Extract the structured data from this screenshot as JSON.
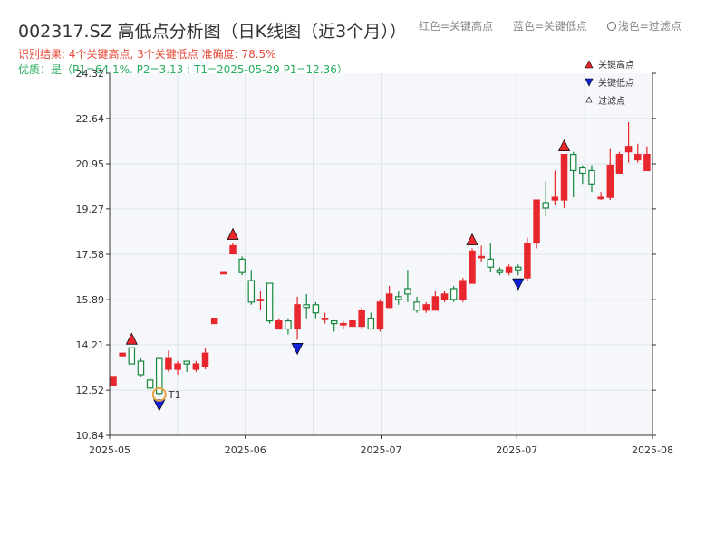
{
  "header": {
    "title": "002317.SZ 高低点分析图（日K线图（近3个月））",
    "legend_red": "红色=关键高点",
    "legend_blue": "蓝色=关键低点",
    "legend_filtered": "浅色=过滤点",
    "result_line": "识别结果: 4个关键高点, 3个关键低点  准确度: 78.5%",
    "quality_line": "优质：是（P1=64.1%, P2=3.13 ; T1=2025-05-29 P1=12.36）"
  },
  "colors": {
    "up": "#e8262d",
    "down": "#16883e",
    "high_marker": "#e8262d",
    "low_marker": "#1020d8",
    "t1_ring": "#e8a33d",
    "plot_bg": "#f5f7fa",
    "grid": "#dfe3e8"
  },
  "chart_data": {
    "type": "candlestick",
    "y_ticks": [
      "10.84",
      "12.52",
      "14.21",
      "15.89",
      "17.58",
      "19.27",
      "20.95",
      "22.64",
      "24.32"
    ],
    "ylim": [
      10.84,
      24.32
    ],
    "x_ticks": [
      "2025-05",
      "2025-06",
      "2025-07",
      "2025-07",
      "2025-08"
    ],
    "x_tick_positions": [
      0,
      20,
      40,
      60,
      80
    ],
    "grid": true,
    "candles": [
      [
        12.7,
        13.0,
        12.7,
        12.9
      ],
      [
        13.8,
        13.9,
        13.8,
        13.8
      ],
      [
        14.1,
        13.5,
        13.5,
        14.1
      ],
      [
        13.6,
        13.1,
        13.0,
        13.7
      ],
      [
        12.9,
        12.6,
        12.5,
        13.0
      ],
      [
        13.7,
        12.4,
        12.3,
        13.7
      ],
      [
        13.3,
        13.7,
        13.2,
        14.0
      ],
      [
        13.3,
        13.5,
        13.1,
        13.6
      ],
      [
        13.6,
        13.5,
        13.2,
        13.6
      ],
      [
        13.3,
        13.5,
        13.2,
        13.6
      ],
      [
        13.4,
        13.9,
        13.3,
        14.1
      ],
      [
        15.0,
        15.2,
        15.0,
        15.2
      ],
      [
        16.9,
        16.9,
        16.9,
        16.9
      ],
      [
        17.6,
        17.9,
        17.6,
        18.0
      ],
      [
        17.4,
        16.9,
        16.8,
        17.5
      ],
      [
        16.6,
        15.8,
        15.7,
        17.0
      ],
      [
        15.9,
        15.9,
        15.5,
        16.2
      ],
      [
        16.5,
        15.1,
        15.0,
        16.5
      ],
      [
        14.8,
        15.1,
        14.8,
        15.2
      ],
      [
        15.1,
        14.8,
        14.6,
        15.2
      ],
      [
        14.8,
        15.7,
        14.4,
        16.0
      ],
      [
        15.7,
        15.6,
        15.2,
        16.1
      ],
      [
        15.7,
        15.4,
        15.2,
        15.8
      ],
      [
        15.2,
        15.2,
        15.0,
        15.4
      ],
      [
        15.1,
        15.0,
        14.7,
        15.1
      ],
      [
        15.0,
        15.0,
        14.8,
        15.1
      ],
      [
        14.9,
        15.1,
        14.9,
        15.1
      ],
      [
        14.9,
        15.5,
        14.8,
        15.6
      ],
      [
        15.2,
        14.8,
        14.8,
        15.4
      ],
      [
        14.8,
        15.8,
        14.7,
        15.9
      ],
      [
        15.6,
        16.1,
        15.6,
        16.4
      ],
      [
        16.0,
        15.9,
        15.7,
        16.2
      ],
      [
        16.3,
        16.1,
        15.8,
        17.0
      ],
      [
        15.8,
        15.5,
        15.4,
        16.0
      ],
      [
        15.5,
        15.7,
        15.4,
        15.8
      ],
      [
        15.5,
        16.0,
        15.5,
        16.2
      ],
      [
        15.9,
        16.1,
        15.8,
        16.2
      ],
      [
        16.3,
        15.9,
        15.8,
        16.4
      ],
      [
        15.9,
        16.6,
        15.8,
        16.7
      ],
      [
        16.5,
        17.7,
        16.5,
        17.8
      ],
      [
        17.5,
        17.5,
        17.3,
        17.9
      ],
      [
        17.4,
        17.1,
        16.9,
        18.0
      ],
      [
        17.0,
        16.9,
        16.8,
        17.1
      ],
      [
        16.9,
        17.1,
        16.8,
        17.2
      ],
      [
        17.1,
        17.0,
        16.8,
        17.2
      ],
      [
        16.7,
        18.0,
        16.6,
        18.2
      ],
      [
        18.0,
        19.6,
        17.8,
        19.6
      ],
      [
        19.5,
        19.3,
        19.0,
        20.3
      ],
      [
        19.6,
        19.7,
        19.4,
        20.7
      ],
      [
        19.6,
        21.3,
        19.3,
        21.3
      ],
      [
        21.3,
        20.7,
        19.7,
        21.4
      ],
      [
        20.8,
        20.6,
        20.2,
        20.9
      ],
      [
        20.7,
        20.2,
        19.9,
        20.9
      ],
      [
        19.7,
        19.7,
        19.6,
        19.9
      ],
      [
        19.7,
        20.9,
        19.6,
        21.5
      ],
      [
        20.6,
        21.3,
        20.6,
        21.4
      ],
      [
        21.4,
        21.6,
        21.0,
        22.5
      ],
      [
        21.1,
        21.3,
        21.0,
        21.7
      ],
      [
        20.7,
        21.3,
        20.7,
        21.6
      ]
    ],
    "key_highs": [
      2,
      13,
      39,
      49
    ],
    "key_lows": [
      5,
      20,
      44
    ],
    "filtered_points": [],
    "t1": {
      "index": 5,
      "label": "T1",
      "date": "2025-05-29",
      "price": 12.36
    },
    "legend": [
      "关键高点",
      "关键低点",
      "过滤点"
    ],
    "legend_position": "top-right"
  }
}
